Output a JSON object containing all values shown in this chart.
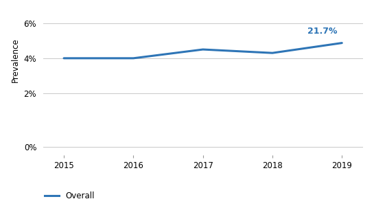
{
  "years": [
    2015,
    2016,
    2017,
    2018,
    2019
  ],
  "values": [
    4.0,
    4.0,
    4.5,
    4.3,
    4.87
  ],
  "line_color": "#2e75b6",
  "line_width": 2.2,
  "annotation_text": "21.7%",
  "annotation_color": "#2e75b6",
  "annotation_fontsize": 9,
  "annotation_fontweight": "bold",
  "ylabel": "Prevalence",
  "ylabel_fontsize": 8.5,
  "xlim": [
    2014.7,
    2019.3
  ],
  "grid_color": "#c8c8c8",
  "grid_linewidth": 0.7,
  "legend_label": "Overall",
  "legend_color": "#2e75b6",
  "bg_color": "#ffffff",
  "tick_fontsize": 8.5,
  "legend_fontsize": 8.5
}
